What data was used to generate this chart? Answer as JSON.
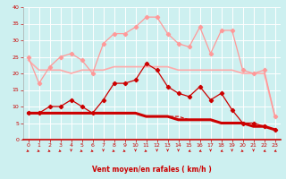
{
  "bg_color": "#cdf0f0",
  "grid_color": "#ffffff",
  "x_ticks": [
    0,
    1,
    2,
    3,
    4,
    5,
    6,
    7,
    8,
    9,
    10,
    11,
    12,
    13,
    14,
    15,
    16,
    17,
    18,
    19,
    20,
    21,
    22,
    23
  ],
  "xlim": [
    -0.5,
    23.5
  ],
  "ylim": [
    0,
    40
  ],
  "y_ticks": [
    0,
    5,
    10,
    15,
    20,
    25,
    30,
    35,
    40
  ],
  "xlabel": "Vent moyen/en rafales ( km/h )",
  "xlabel_color": "#cc0000",
  "tick_color": "#cc0000",
  "line1_color": "#ff9999",
  "line2_color": "#ffaaaa",
  "line3_color": "#cc0000",
  "line4_color": "#cc0000",
  "line5_color": "#cc0000",
  "line1_y": [
    25,
    17,
    22,
    25,
    26,
    24,
    20,
    29,
    32,
    32,
    34,
    37,
    37,
    32,
    29,
    28,
    34,
    26,
    33,
    33,
    21,
    20,
    21,
    7
  ],
  "line2_y": [
    24,
    21,
    21,
    21,
    20,
    21,
    21,
    21,
    22,
    22,
    22,
    22,
    22,
    22,
    21,
    21,
    21,
    21,
    21,
    21,
    20,
    20,
    20,
    7
  ],
  "line3_y": [
    8,
    8,
    10,
    10,
    12,
    10,
    8,
    12,
    17,
    17,
    18,
    23,
    21,
    16,
    14,
    13,
    16,
    12,
    14,
    9,
    5,
    5,
    4,
    3
  ],
  "line4_y": [
    8,
    8,
    8,
    8,
    8,
    8,
    8,
    8,
    8,
    8,
    8,
    7,
    7,
    7,
    6,
    6,
    6,
    6,
    5,
    5,
    5,
    4,
    4,
    3
  ],
  "line5_y": [
    8,
    8,
    8,
    8,
    8,
    8,
    8,
    8,
    8,
    8,
    8,
    7,
    7,
    7,
    7,
    6,
    6,
    6,
    5,
    5,
    5,
    4,
    4,
    3
  ],
  "arrow_angles": [
    45,
    45,
    45,
    45,
    0,
    45,
    45,
    0,
    45,
    45,
    0,
    45,
    0,
    0,
    0,
    315,
    315,
    0,
    315,
    0,
    45,
    0,
    315,
    315
  ],
  "arrow_color": "#cc0000"
}
